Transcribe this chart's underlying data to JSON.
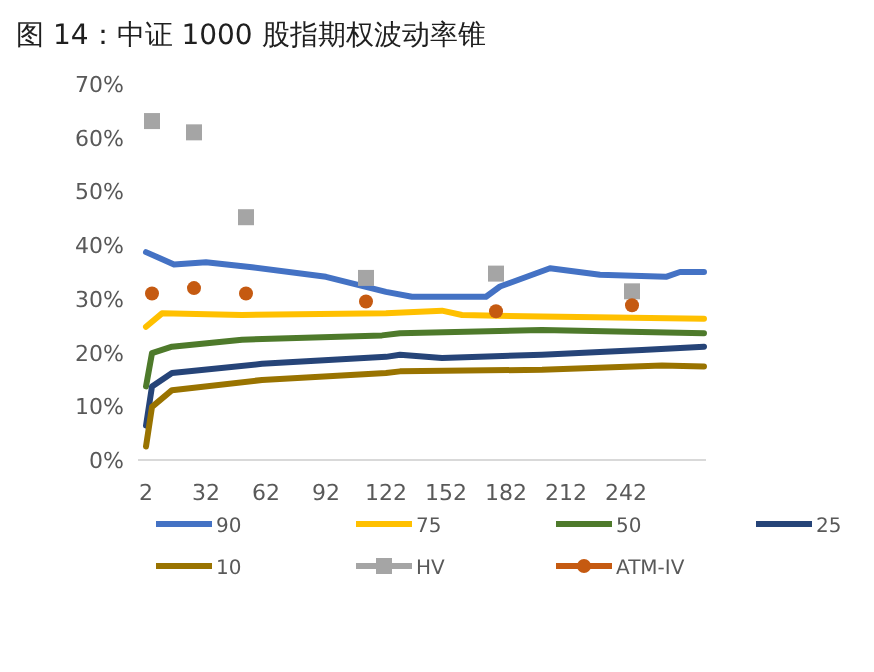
{
  "chart_data": {
    "type": "line",
    "title": "图 14：中证 1000 股指期权波动率锥",
    "xlim": [
      -2,
      282
    ],
    "xticks": [
      2,
      32,
      62,
      92,
      122,
      152,
      182,
      212,
      242
    ],
    "ylim": [
      0,
      70
    ],
    "yticks": [
      {
        "value": 0,
        "label": "0%"
      },
      {
        "value": 10,
        "label": "10%"
      },
      {
        "value": 20,
        "label": "20%"
      },
      {
        "value": 30,
        "label": "30%"
      },
      {
        "value": 40,
        "label": "40%"
      },
      {
        "value": 50,
        "label": "50%"
      },
      {
        "value": 60,
        "label": "60%"
      },
      {
        "value": 70,
        "label": "70%"
      }
    ],
    "grid": false,
    "legend": "bottom",
    "series": [
      {
        "name": "90",
        "color": "#4472c4",
        "x": [
          2,
          16,
          32,
          55,
          92,
          122,
          135,
          172,
          179,
          204,
          229,
          262,
          269,
          281
        ],
        "values": [
          38.7,
          36.4,
          36.8,
          35.9,
          34.1,
          31.3,
          30.4,
          30.4,
          32.3,
          35.7,
          34.5,
          34.1,
          35.0,
          35.0
        ]
      },
      {
        "name": "75",
        "color": "#ffc000",
        "x": [
          2,
          10,
          50,
          122,
          150,
          160,
          200,
          281
        ],
        "values": [
          24.8,
          27.3,
          27.0,
          27.3,
          27.8,
          27.0,
          26.7,
          26.3
        ]
      },
      {
        "name": "50",
        "color": "#4e7a2b",
        "x": [
          2,
          5,
          15,
          50,
          120,
          129,
          200,
          281
        ],
        "values": [
          13.7,
          19.9,
          21.1,
          22.4,
          23.2,
          23.6,
          24.2,
          23.6
        ]
      },
      {
        "name": "25",
        "color": "#264478",
        "x": [
          2,
          5,
          15,
          60,
          122,
          129,
          150,
          200,
          250,
          281
        ],
        "values": [
          6.4,
          13.7,
          16.2,
          17.9,
          19.2,
          19.6,
          19.0,
          19.6,
          20.5,
          21.1
        ]
      },
      {
        "name": "10",
        "color": "#997300",
        "x": [
          2,
          5,
          15,
          60,
          122,
          129,
          200,
          260,
          281
        ],
        "values": [
          2.5,
          9.9,
          13.0,
          14.9,
          16.2,
          16.5,
          16.8,
          17.6,
          17.4
        ]
      },
      {
        "name": "HV",
        "type": "scatter",
        "marker": "square",
        "color": "#a5a5a5",
        "x": [
          5,
          26,
          52,
          112,
          177,
          245
        ],
        "values": [
          63.1,
          61.0,
          45.2,
          33.9,
          34.7,
          31.4
        ]
      },
      {
        "name": "ATM-IV",
        "type": "scatter",
        "marker": "circle",
        "color": "#c55a11",
        "x": [
          5,
          26,
          52,
          112,
          177,
          245
        ],
        "values": [
          31.0,
          32.0,
          31.0,
          29.5,
          27.7,
          28.8
        ]
      }
    ]
  }
}
